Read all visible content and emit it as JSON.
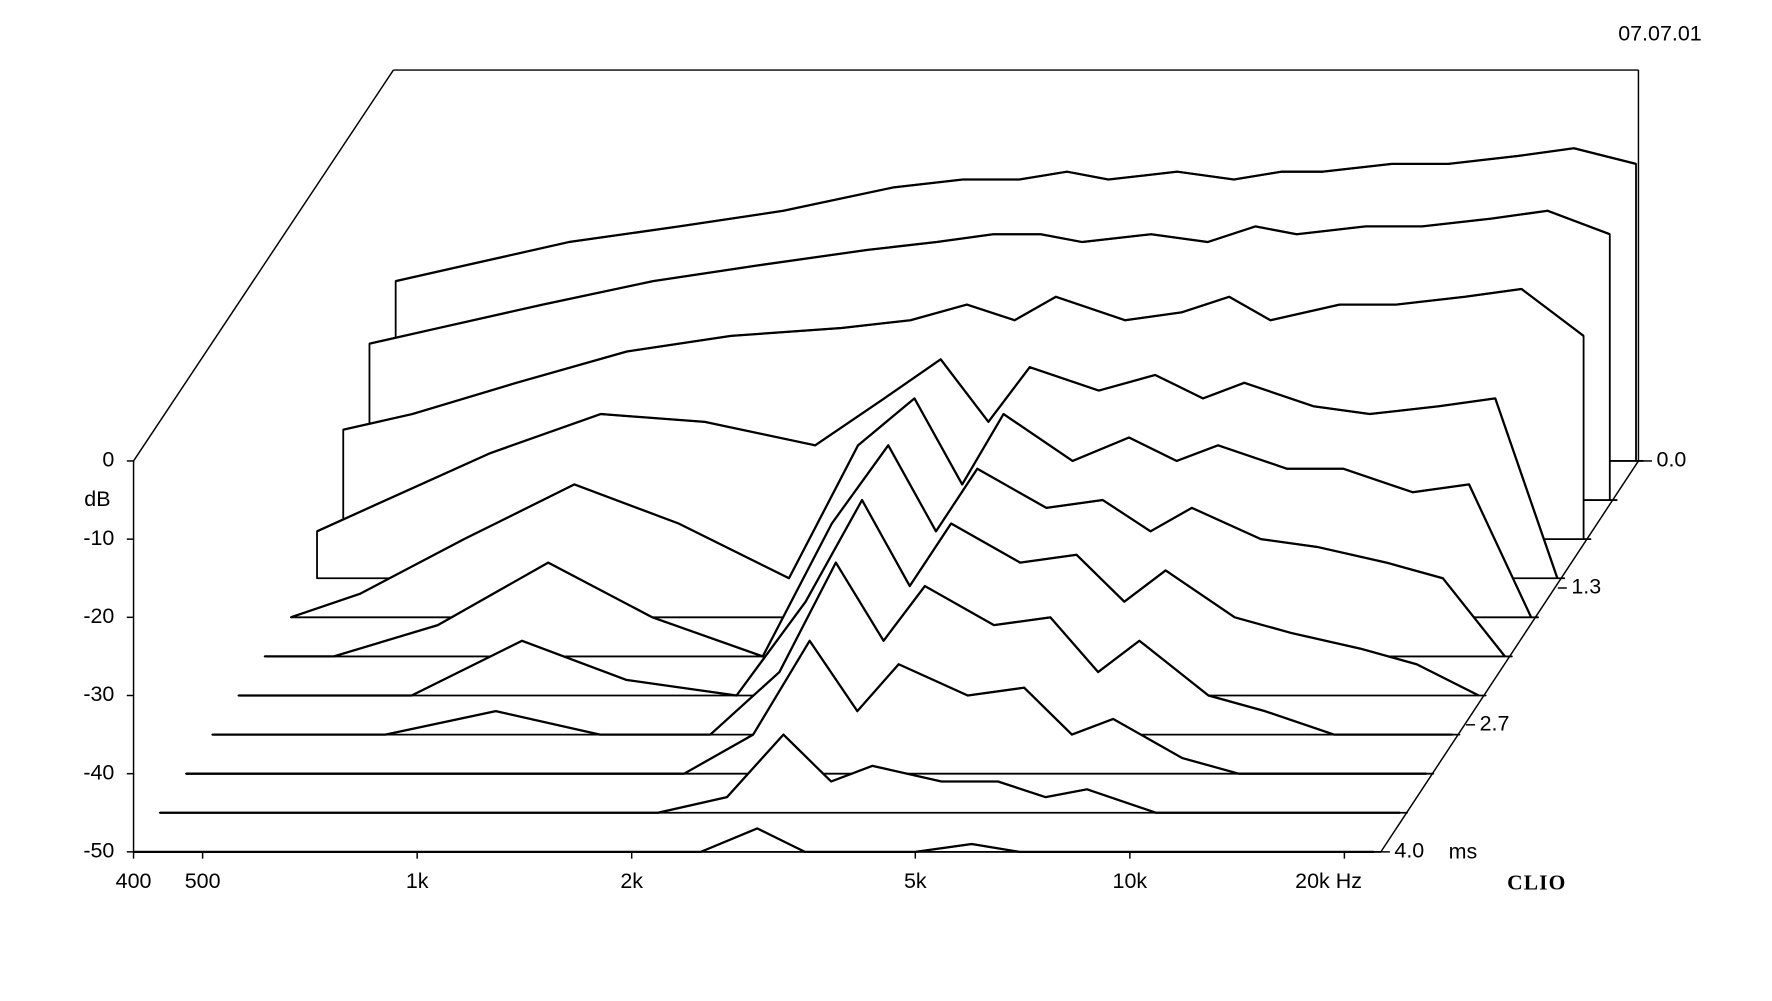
{
  "chart_data": {
    "type": "waterfall",
    "date": "07.07.01",
    "brand": "CLIO",
    "ylabel": "dB",
    "zlabel": "ms",
    "x": [
      400,
      500,
      700,
      1000,
      1400,
      2000,
      2500,
      3000,
      3500,
      4000,
      5000,
      6000,
      7000,
      8000,
      10000,
      12000,
      15000,
      18000,
      22000
    ],
    "xlim": [
      400,
      22500
    ],
    "xlog": true,
    "xticks": [
      400,
      500,
      {
        "value": 1000,
        "label": "1k"
      },
      {
        "value": 2000,
        "label": "2k"
      },
      {
        "value": 5000,
        "label": "5k"
      },
      {
        "value": 10000,
        "label": "10k"
      },
      {
        "value": 20000,
        "label": "20k Hz"
      }
    ],
    "ylim": [
      -50,
      0
    ],
    "yticks": [
      0,
      -10,
      -20,
      -30,
      -40,
      -50
    ],
    "zlim": [
      0,
      4
    ],
    "zticks": [
      {
        "value": 0,
        "label": "0.0"
      },
      {
        "value": 1.3,
        "label": "1.3"
      },
      {
        "value": 2.7,
        "label": "2.7"
      },
      {
        "value": 4,
        "label": "4.0"
      }
    ],
    "color": "#000000",
    "series": [
      {
        "z": 0,
        "values": [
          -27,
          -25,
          -22,
          -20,
          -18,
          -15,
          -14,
          -14,
          -13,
          -14,
          -13,
          -14,
          -13,
          -13,
          -12,
          -12,
          -11,
          -10,
          -12
        ]
      },
      {
        "z": 0.4,
        "values": [
          -30,
          -28,
          -25,
          -22,
          -20,
          -18,
          -17,
          -16,
          -16,
          -17,
          -16,
          -17,
          -15,
          -16,
          -15,
          -15,
          -14,
          -13,
          -16
        ]
      },
      {
        "z": 0.8,
        "values": [
          -36,
          -34,
          -30,
          -26,
          -24,
          -23,
          -22,
          -20,
          -22,
          -19,
          -22,
          -21,
          -19,
          -22,
          -20,
          -20,
          -19,
          -18,
          -24
        ]
      },
      {
        "z": 1.2,
        "values": [
          -44,
          -40,
          -34,
          -29,
          -30,
          -33,
          -27,
          -22,
          -30,
          -23,
          -26,
          -24,
          -27,
          -25,
          -28,
          -29,
          -28,
          -27,
          -50
        ]
      },
      {
        "z": 1.6,
        "values": [
          -50,
          -47,
          -40,
          -33,
          -38,
          -45,
          -28,
          -22,
          -33,
          -24,
          -30,
          -27,
          -30,
          -28,
          -31,
          -31,
          -34,
          -33,
          -50
        ]
      },
      {
        "z": 2,
        "values": [
          -50,
          -50,
          -46,
          -38,
          -45,
          -50,
          -33,
          -23,
          -34,
          -26,
          -31,
          -30,
          -34,
          -31,
          -35,
          -36,
          -38,
          -40,
          -50
        ]
      },
      {
        "z": 2.4,
        "values": [
          -50,
          -50,
          -50,
          -43,
          -48,
          -50,
          -38,
          -25,
          -36,
          -28,
          -33,
          -32,
          -38,
          -34,
          -40,
          -42,
          -44,
          -46,
          -50
        ]
      },
      {
        "z": 2.8,
        "values": [
          -50,
          -50,
          -50,
          -47,
          -50,
          -50,
          -42,
          -28,
          -38,
          -31,
          -36,
          -35,
          -42,
          -38,
          -45,
          -47,
          -50,
          -50,
          -50
        ]
      },
      {
        "z": 3.2,
        "values": [
          -50,
          -50,
          -50,
          -50,
          -50,
          -50,
          -45,
          -33,
          -42,
          -36,
          -40,
          -39,
          -45,
          -43,
          -48,
          -50,
          -50,
          -50,
          -50
        ]
      },
      {
        "z": 3.6,
        "values": [
          -50,
          -50,
          -50,
          -50,
          -50,
          -50,
          -48,
          -40,
          -46,
          -44,
          -46,
          -46,
          -48,
          -47,
          -50,
          -50,
          -50,
          -50,
          -50
        ]
      },
      {
        "z": 4,
        "values": [
          -50,
          -50,
          -50,
          -50,
          -50,
          -50,
          -50,
          -47,
          -50,
          -50,
          -50,
          -49,
          -50,
          -50,
          -50,
          -50,
          -50,
          -50,
          -50
        ]
      }
    ]
  }
}
